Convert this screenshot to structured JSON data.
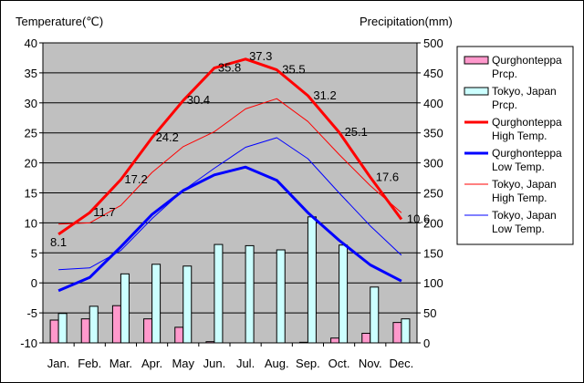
{
  "chart_data": {
    "type": "bar",
    "left_axis_title": "Temperature(℃)",
    "right_axis_title": "Precipitation(mm)",
    "categories": [
      "Jan.",
      "Feb.",
      "Mar.",
      "Apr.",
      "May",
      "Jun.",
      "Jul.",
      "Aug.",
      "Sep.",
      "Oct.",
      "Nov.",
      "Dec."
    ],
    "left_axis": {
      "min": -10,
      "max": 40,
      "step": 5
    },
    "right_axis": {
      "min": 0,
      "max": 500,
      "step": 50
    },
    "plot_background": "#c0c0c0",
    "grid": true,
    "legend_position": "right",
    "bars": [
      {
        "name": "Qurghonteppa Prcp.",
        "color": "#ff99cc",
        "values": [
          38,
          40,
          62,
          40,
          26,
          2,
          0,
          0,
          1,
          8,
          16,
          34
        ]
      },
      {
        "name": "Tokyo, Japan Prcp.",
        "color": "#ccffff",
        "values": [
          49,
          61,
          115,
          131,
          128,
          164,
          162,
          155,
          210,
          163,
          93,
          40
        ]
      }
    ],
    "lines": [
      {
        "name": "Qurghonteppa High Temp.",
        "color": "#ff0000",
        "width": 3,
        "values": [
          8.1,
          11.7,
          17.2,
          24.2,
          30.4,
          35.8,
          37.3,
          35.5,
          31.2,
          25.1,
          17.6,
          10.6
        ],
        "labels": [
          "8.1",
          "11.7",
          "17.2",
          "24.2",
          "30.4",
          "35.8",
          "37.3",
          "35.5",
          "31.2",
          "25.1",
          "17.6",
          "10.6"
        ]
      },
      {
        "name": "Qurghonteppa Low Temp.",
        "color": "#0000ff",
        "width": 3,
        "values": [
          -1.3,
          0.9,
          6.0,
          11.4,
          15.4,
          18.0,
          19.3,
          17.1,
          11.7,
          7.1,
          3.0,
          0.3
        ]
      },
      {
        "name": "Tokyo, Japan High Temp.",
        "color": "#ff0000",
        "width": 1,
        "values": [
          9.8,
          10.0,
          12.9,
          18.4,
          22.7,
          25.2,
          29.0,
          30.7,
          26.9,
          21.4,
          16.2,
          11.7
        ]
      },
      {
        "name": "Tokyo, Japan Low Temp.",
        "color": "#0000ff",
        "width": 1,
        "values": [
          2.2,
          2.5,
          5.4,
          10.7,
          15.4,
          19.1,
          22.6,
          24.2,
          20.7,
          15.0,
          9.5,
          4.6
        ]
      }
    ],
    "legend": [
      {
        "kind": "bar",
        "color": "#ff99cc",
        "line1": "Qurghonteppa",
        "line2": "Prcp."
      },
      {
        "kind": "bar",
        "color": "#ccffff",
        "line1": "Tokyo, Japan",
        "line2": "Prcp."
      },
      {
        "kind": "line",
        "color": "#ff0000",
        "width": 3,
        "line1": "Qurghonteppa",
        "line2": "High Temp."
      },
      {
        "kind": "line",
        "color": "#0000ff",
        "width": 3,
        "line1": "Qurghonteppa",
        "line2": "Low Temp."
      },
      {
        "kind": "line",
        "color": "#ff0000",
        "width": 1,
        "line1": "Tokyo, Japan",
        "line2": "High Temp."
      },
      {
        "kind": "line",
        "color": "#0000ff",
        "width": 1,
        "line1": "Tokyo, Japan",
        "line2": "Low Temp."
      }
    ]
  }
}
